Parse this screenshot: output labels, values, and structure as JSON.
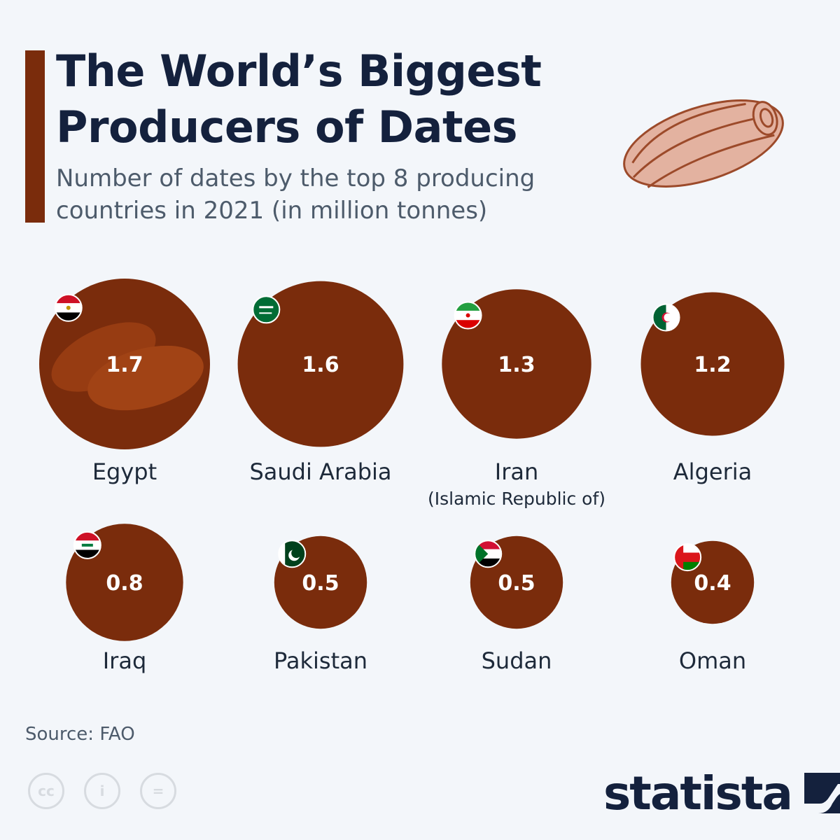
{
  "header": {
    "title": "The World’s Biggest Producers of Dates",
    "subtitle": "Number of dates by the top 8 producing countries in 2021 (in million tonnes)"
  },
  "chart_data": {
    "type": "bubble",
    "title": "The World’s Biggest Producers of Dates",
    "subtitle": "Number of dates by the top 8 producing countries in 2021 (in million tonnes)",
    "unit": "million tonnes",
    "categories": [
      "Egypt",
      "Saudi Arabia",
      "Iran",
      "Algeria",
      "Iraq",
      "Pakistan",
      "Sudan",
      "Oman"
    ],
    "category_sublabels": [
      "",
      "",
      "(Islamic Republic of)",
      "",
      "",
      "",
      "",
      ""
    ],
    "values": [
      1.7,
      1.6,
      1.3,
      1.2,
      0.8,
      0.5,
      0.5,
      0.4
    ],
    "value_labels": [
      "1.7",
      "1.6",
      "1.3",
      "1.2",
      "0.8",
      "0.5",
      "0.5",
      "0.4"
    ],
    "flags": [
      "egypt-flag-icon",
      "saudi-arabia-flag-icon",
      "iran-flag-icon",
      "algeria-flag-icon",
      "iraq-flag-icon",
      "pakistan-flag-icon",
      "sudan-flag-icon",
      "oman-flag-icon"
    ],
    "legend": "none",
    "grid": false
  },
  "colors": {
    "bubble": "#7a2c0c",
    "accent": "#7a2c0c",
    "title": "#14213d",
    "subtitle": "#4d5b6b",
    "background": "#f3f6fa"
  },
  "footer": {
    "source": "Source: FAO",
    "brand": "statista",
    "license_icons": [
      "cc-icon",
      "attribution-icon",
      "no-derivatives-icon"
    ],
    "license_text": [
      "cc",
      "i",
      "="
    ]
  }
}
